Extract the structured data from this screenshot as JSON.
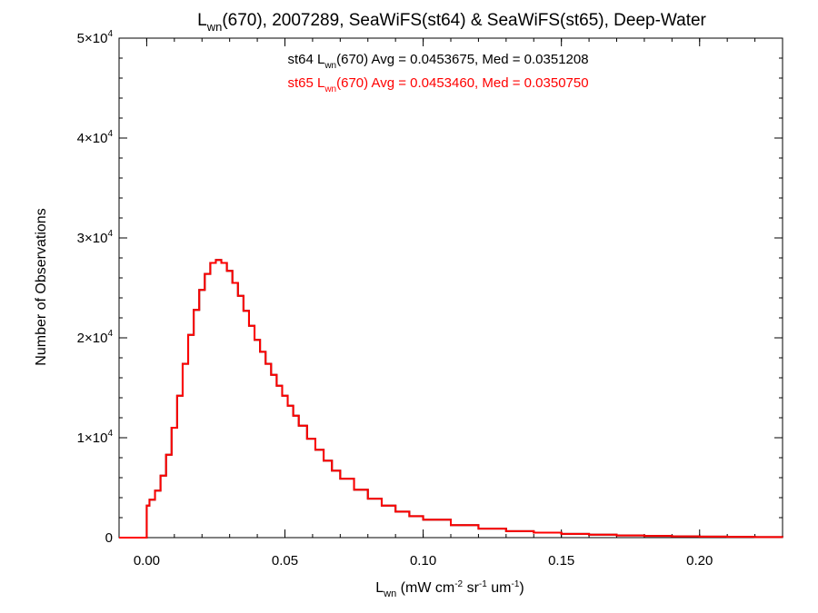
{
  "chart_data": {
    "type": "line",
    "title": {
      "base": "L",
      "sub": "wn",
      "rest": "(670), 2007289, SeaWiFS(st64) & SeaWiFS(st65), Deep-Water"
    },
    "xlabel": {
      "base": "L",
      "sub": "wn",
      "rest": " (mW cm",
      "sup1": "-2",
      "mid": " sr",
      "sup2": "-1",
      "mid2": " um",
      "sup3": "-1",
      "end": ")"
    },
    "ylabel": "Number of Observations",
    "xlim": [
      -0.01,
      0.23
    ],
    "ylim": [
      0,
      50000
    ],
    "x_ticks": [
      {
        "value": 0.0,
        "label": "0.00"
      },
      {
        "value": 0.05,
        "label": "0.05"
      },
      {
        "value": 0.1,
        "label": "0.10"
      },
      {
        "value": 0.15,
        "label": "0.15"
      },
      {
        "value": 0.2,
        "label": "0.20"
      }
    ],
    "y_ticks": [
      {
        "value": 0,
        "label": "0"
      },
      {
        "value": 10000,
        "label": "1×10",
        "exp": "4"
      },
      {
        "value": 20000,
        "label": "2×10",
        "exp": "4"
      },
      {
        "value": 30000,
        "label": "3×10",
        "exp": "4"
      },
      {
        "value": 40000,
        "label": "4×10",
        "exp": "4"
      },
      {
        "value": 50000,
        "label": "5×10",
        "exp": "4"
      }
    ],
    "annotations": [
      {
        "prefix": "st64 L",
        "sub": "wn",
        "rest": "(670) Avg = 0.0453675, Med = 0.0351208",
        "color": "#000000"
      },
      {
        "prefix": "st65 L",
        "sub": "wn",
        "rest": "(670) Avg = 0.0453460, Med = 0.0350750",
        "color": "#ff0000"
      }
    ],
    "series": [
      {
        "color": "#000000",
        "x": [
          -0.01,
          0.0,
          0.001,
          0.003,
          0.005,
          0.007,
          0.009,
          0.011,
          0.013,
          0.015,
          0.017,
          0.019,
          0.021,
          0.023,
          0.025,
          0.027,
          0.029,
          0.031,
          0.033,
          0.035,
          0.037,
          0.039,
          0.041,
          0.043,
          0.045,
          0.047,
          0.049,
          0.051,
          0.053,
          0.055,
          0.058,
          0.061,
          0.064,
          0.067,
          0.07,
          0.075,
          0.08,
          0.085,
          0.09,
          0.095,
          0.1,
          0.11,
          0.12,
          0.13,
          0.14,
          0.15,
          0.16,
          0.17,
          0.18,
          0.19,
          0.2,
          0.21,
          0.22,
          0.23
        ],
        "values": [
          0,
          3200,
          3800,
          4700,
          6200,
          8300,
          11000,
          14200,
          17400,
          20300,
          22800,
          24800,
          26400,
          27500,
          27800,
          27500,
          26700,
          25500,
          24200,
          22700,
          21200,
          19800,
          18600,
          17400,
          16300,
          15200,
          14200,
          13200,
          12200,
          11200,
          9900,
          8800,
          7700,
          6700,
          5900,
          4800,
          3900,
          3200,
          2600,
          2150,
          1800,
          1250,
          900,
          650,
          500,
          380,
          290,
          220,
          170,
          130,
          100,
          80,
          60,
          40
        ]
      },
      {
        "color": "#ff0000",
        "x": [
          -0.01,
          0.0,
          0.001,
          0.003,
          0.005,
          0.007,
          0.009,
          0.011,
          0.013,
          0.015,
          0.017,
          0.019,
          0.021,
          0.023,
          0.025,
          0.027,
          0.029,
          0.031,
          0.033,
          0.035,
          0.037,
          0.039,
          0.041,
          0.043,
          0.045,
          0.047,
          0.049,
          0.051,
          0.053,
          0.055,
          0.058,
          0.061,
          0.064,
          0.067,
          0.07,
          0.075,
          0.08,
          0.085,
          0.09,
          0.095,
          0.1,
          0.11,
          0.12,
          0.13,
          0.14,
          0.15,
          0.16,
          0.17,
          0.18,
          0.19,
          0.2,
          0.21,
          0.22,
          0.23
        ],
        "values": [
          0,
          3200,
          3800,
          4700,
          6200,
          8300,
          11000,
          14200,
          17400,
          20300,
          22800,
          24800,
          26400,
          27500,
          27800,
          27500,
          26700,
          25500,
          24200,
          22700,
          21200,
          19800,
          18600,
          17400,
          16300,
          15200,
          14200,
          13200,
          12200,
          11200,
          9900,
          8800,
          7700,
          6700,
          5900,
          4800,
          3900,
          3200,
          2600,
          2150,
          1800,
          1250,
          900,
          650,
          500,
          380,
          290,
          220,
          170,
          130,
          100,
          80,
          60,
          40
        ]
      }
    ],
    "grid": false
  }
}
